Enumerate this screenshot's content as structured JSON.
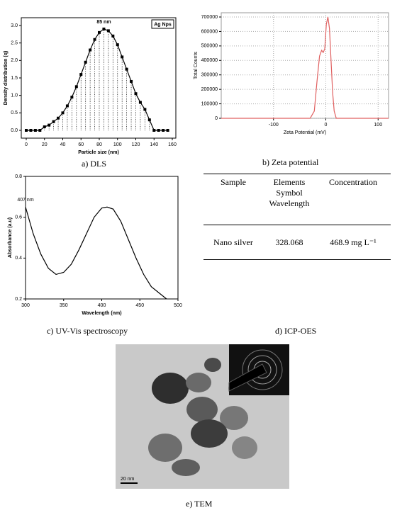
{
  "chart_data": [
    {
      "type": "bar",
      "annotation": "85 nm",
      "xlabel": "Particle size (nm)",
      "ylabel": "Density distribution (q)",
      "x": [
        0,
        5,
        10,
        15,
        20,
        25,
        30,
        35,
        40,
        45,
        50,
        55,
        60,
        65,
        70,
        75,
        80,
        85,
        90,
        95,
        100,
        105,
        110,
        115,
        120,
        125,
        130,
        135,
        140,
        145,
        150,
        155
      ],
      "series": [
        {
          "name": "Ag Nps",
          "color": "#000000",
          "values": [
            0,
            0,
            0,
            0,
            0.1,
            0.15,
            0.25,
            0.35,
            0.5,
            0.7,
            0.95,
            1.25,
            1.6,
            1.95,
            2.3,
            2.6,
            2.8,
            2.9,
            2.85,
            2.7,
            2.45,
            2.1,
            1.75,
            1.4,
            1.05,
            0.8,
            0.6,
            0.3,
            0,
            0,
            0,
            0
          ]
        }
      ],
      "xlim": [
        0,
        160
      ],
      "xticks": [
        0,
        20,
        40,
        60,
        80,
        100,
        120,
        140,
        160
      ],
      "ylim": [
        0,
        3
      ],
      "yticks": [
        {
          "value": 0,
          "label": "0.0"
        },
        {
          "value": 0.5,
          "label": "0.5"
        },
        {
          "value": 1,
          "label": "1.0"
        },
        {
          "value": 1.5,
          "label": "1.5"
        },
        {
          "value": 2,
          "label": "2.0"
        },
        {
          "value": 2.5,
          "label": "2.5"
        },
        {
          "value": 3,
          "label": "3.0"
        }
      ],
      "grid": false
    },
    {
      "type": "line",
      "xlabel": "Zeta Potential (mV)",
      "ylabel": "Total Counts",
      "x": [
        -200,
        -30,
        -22,
        -17,
        -12,
        -8,
        -5,
        -2,
        1,
        4,
        7,
        10,
        13,
        16,
        20,
        120
      ],
      "series": [
        {
          "color": "#e06060",
          "values": [
            0,
            0,
            50000,
            250000,
            430000,
            470000,
            455000,
            480000,
            650000,
            700000,
            620000,
            400000,
            180000,
            50000,
            0,
            0
          ]
        }
      ],
      "xlim": [
        -200,
        120
      ],
      "xticks": [
        -100,
        0,
        100
      ],
      "ylim": [
        0,
        700000
      ],
      "yticks": [
        0,
        100000,
        200000,
        300000,
        400000,
        500000,
        600000,
        700000
      ],
      "grid": true
    },
    {
      "type": "line",
      "annotation": "407 nm",
      "xlabel": "Wavelength (nm)",
      "ylabel": "Absorbance (a.u)",
      "x": [
        300,
        310,
        320,
        330,
        340,
        350,
        360,
        370,
        380,
        390,
        400,
        407,
        415,
        425,
        435,
        445,
        455,
        465,
        475,
        485
      ],
      "series": [
        {
          "color": "#000000",
          "values": [
            0.65,
            0.52,
            0.42,
            0.35,
            0.32,
            0.33,
            0.37,
            0.44,
            0.52,
            0.6,
            0.645,
            0.65,
            0.64,
            0.58,
            0.49,
            0.4,
            0.32,
            0.26,
            0.23,
            0.2
          ]
        }
      ],
      "xlim": [
        300,
        500
      ],
      "xticks": [
        300,
        350,
        400,
        450,
        500
      ],
      "ylim": [
        0.2,
        0.8
      ],
      "yticks": [
        0.2,
        0.4,
        0.6,
        0.8
      ],
      "grid": false
    }
  ],
  "table": {
    "header": [
      "Sample",
      "Elements Symbol Wavelength",
      "Concentration"
    ],
    "rows": [
      [
        "Nano silver",
        "328.068",
        "468.9 mg L⁻¹"
      ]
    ]
  },
  "captions": [
    "a)  DLS",
    "b)  Zeta potential",
    "c)  UV-Vis spectroscopy",
    "d)  ICP-OES",
    "e) TEM"
  ],
  "tem": {
    "scale_bar": "20 nm"
  }
}
